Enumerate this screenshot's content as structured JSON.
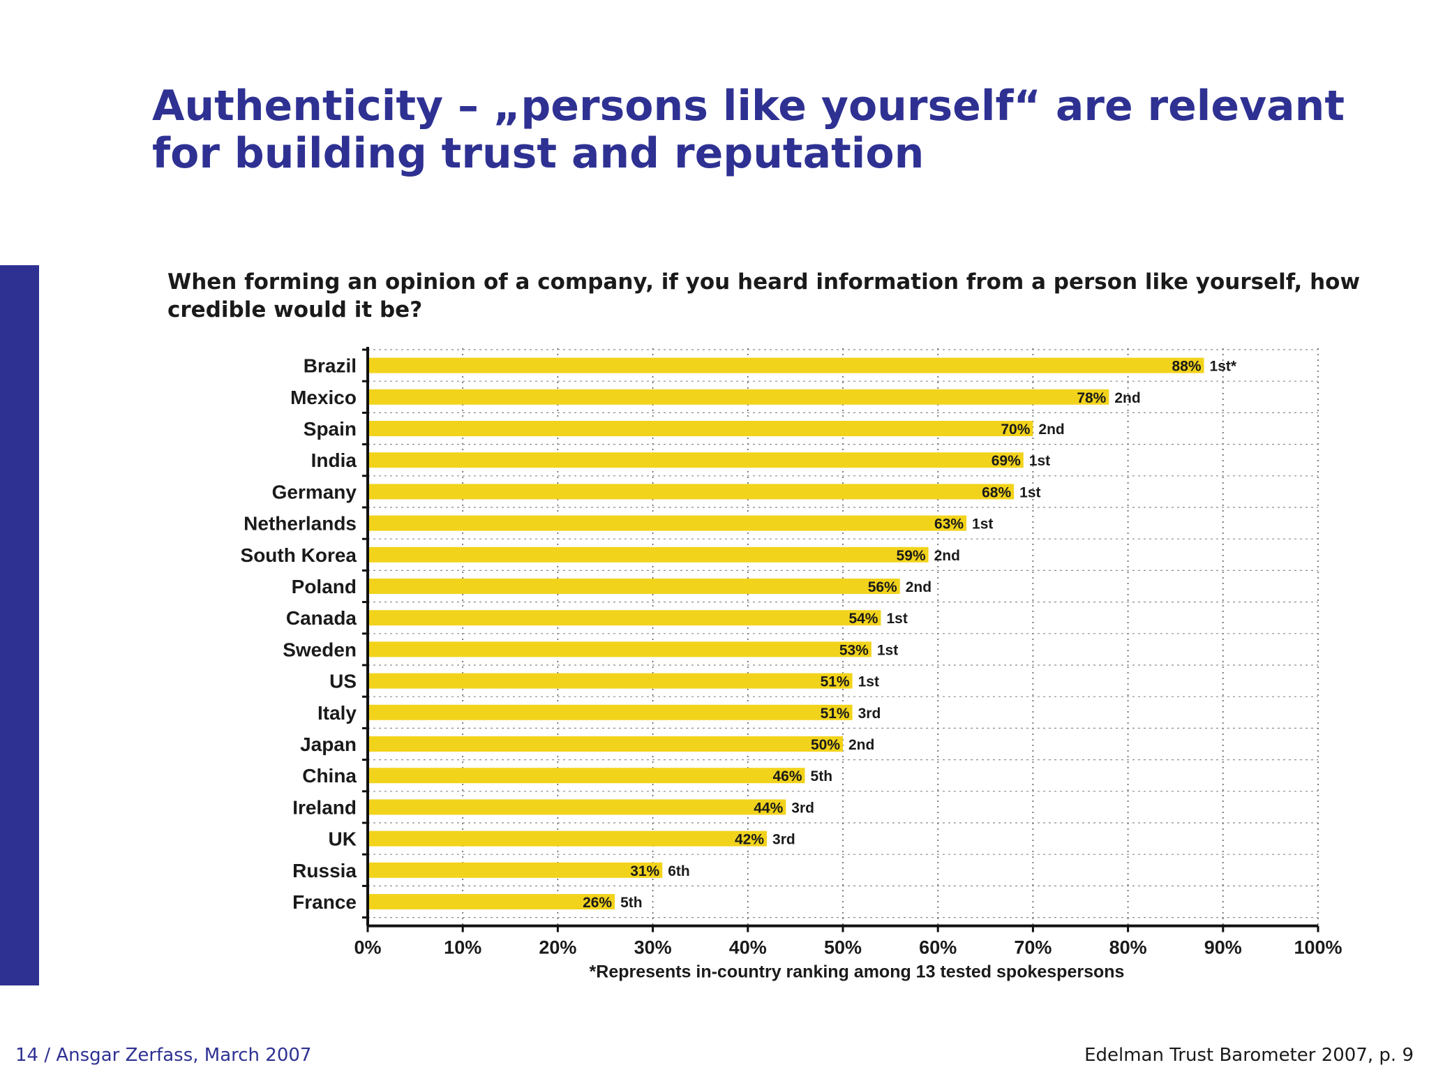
{
  "slide": {
    "title": "Authenticity – „persons like yourself“ are relevant for building trust and reputation",
    "footer_left": "14 / Ansgar Zerfass, March 2007",
    "footer_right": "Edelman Trust Barometer 2007, p. 9"
  },
  "colors": {
    "accent": "#2e3192",
    "bar": "#f2d31b",
    "text": "#1a1a1a"
  },
  "chart_data": {
    "type": "bar",
    "orientation": "horizontal",
    "title": "When forming an opinion of a company, if you heard information from a person like yourself, how credible would it be?",
    "categories": [
      "Brazil",
      "Mexico",
      "Spain",
      "India",
      "Germany",
      "Netherlands",
      "South Korea",
      "Poland",
      "Canada",
      "Sweden",
      "US",
      "Italy",
      "Japan",
      "China",
      "Ireland",
      "UK",
      "Russia",
      "France"
    ],
    "values": [
      88,
      78,
      70,
      69,
      68,
      63,
      59,
      56,
      54,
      53,
      51,
      51,
      50,
      46,
      44,
      42,
      31,
      26
    ],
    "value_labels": [
      "88%",
      "78%",
      "70%",
      "69%",
      "68%",
      "63%",
      "59%",
      "56%",
      "54%",
      "53%",
      "51%",
      "51%",
      "50%",
      "46%",
      "44%",
      "42%",
      "31%",
      "26%"
    ],
    "ranks": [
      "1st*",
      "2nd",
      "2nd",
      "1st",
      "1st",
      "1st",
      "2nd",
      "2nd",
      "1st",
      "1st",
      "1st",
      "3rd",
      "2nd",
      "5th",
      "3rd",
      "3rd",
      "6th",
      "5th"
    ],
    "xlim": [
      0,
      100
    ],
    "xticks": [
      "0%",
      "10%",
      "20%",
      "30%",
      "40%",
      "50%",
      "60%",
      "70%",
      "80%",
      "90%",
      "100%"
    ],
    "grid": true,
    "note": "*Represents in-country ranking among 13 tested spokespersons"
  }
}
